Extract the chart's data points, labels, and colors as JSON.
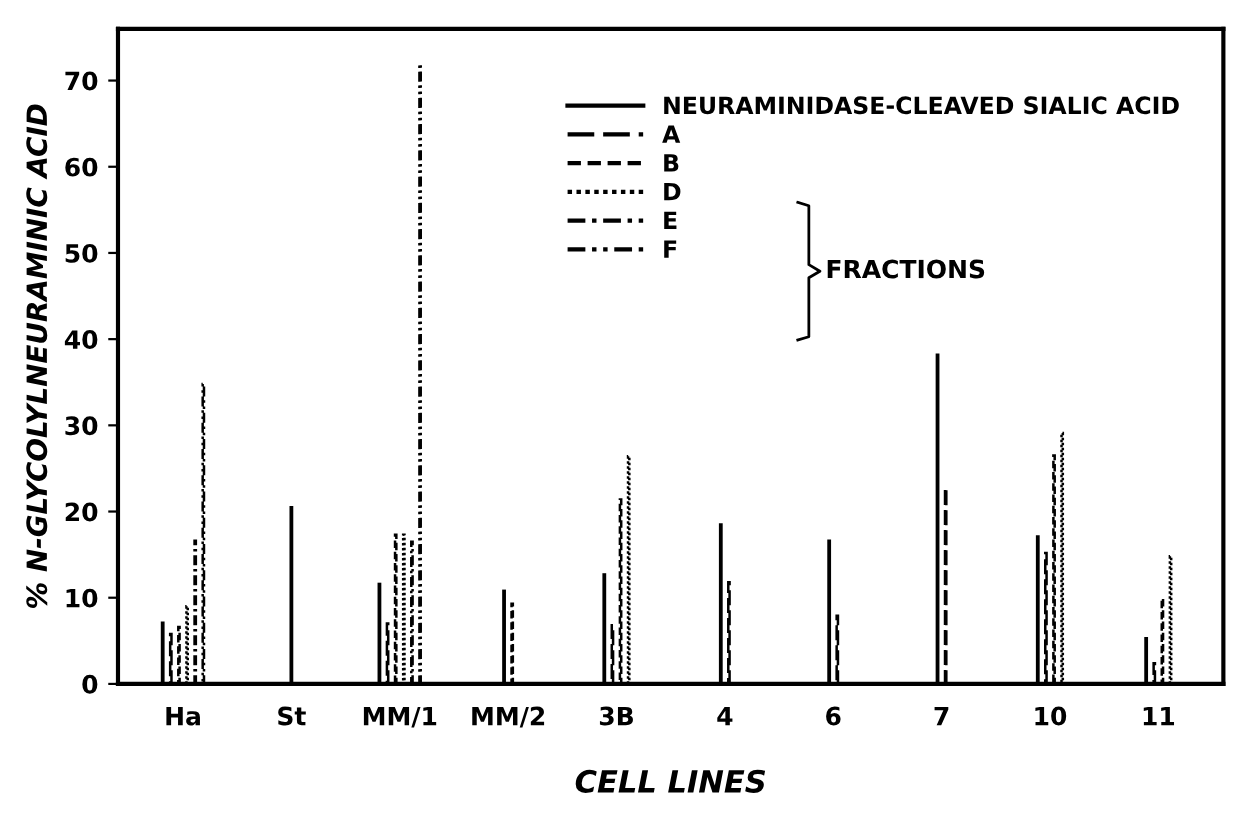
{
  "chart_data": {
    "type": "bar",
    "xlabel": "CELL LINES",
    "ylabel": "% N-GLYCOLYLNEURAMINIC ACID",
    "categories": [
      "Ha",
      "St",
      "MM/1",
      "MM/2",
      "3B",
      "4",
      "6",
      "7",
      "10",
      "11"
    ],
    "series": [
      {
        "name": "NEURAMINIDASE-CLEAVED SIALIC ACID",
        "color": "#000000",
        "line_style": "solid",
        "values": [
          7.1,
          20.5,
          11.6,
          10.8,
          12.7,
          18.5,
          16.6,
          38.2,
          17.1,
          5.3
        ]
      },
      {
        "name": "A",
        "color": "#000000",
        "line_style": "dashed",
        "values": [
          5.8,
          null,
          7,
          null,
          6.8,
          11.8,
          7.9,
          22.7,
          15.2,
          2.4
        ]
      },
      {
        "name": "B",
        "color": "#000000",
        "line_style": "shortdashed",
        "values": [
          6.6,
          null,
          17.3,
          9.3,
          21.4,
          null,
          null,
          null,
          26.5,
          9.9
        ]
      },
      {
        "name": "D",
        "color": "#000000",
        "line_style": "dotted",
        "values": [
          9,
          null,
          17.3,
          null,
          26.4,
          null,
          null,
          null,
          29.1,
          14.8
        ]
      },
      {
        "name": "E",
        "color": "#000000",
        "line_style": "dashdot",
        "values": [
          16.6,
          null,
          16.5,
          null,
          null,
          null,
          null,
          null,
          null,
          null
        ]
      },
      {
        "name": "F",
        "color": "#000000",
        "line_style": "dashdotdot",
        "values": [
          34.8,
          null,
          71.9,
          null,
          null,
          null,
          null,
          null,
          null,
          null
        ]
      }
    ],
    "annotations": [
      "FRACTIONS"
    ],
    "ylim": [
      0,
      76
    ],
    "yticks": [
      0,
      10,
      20,
      30,
      40,
      50,
      60,
      70
    ],
    "legend": "top right",
    "grid": false
  }
}
